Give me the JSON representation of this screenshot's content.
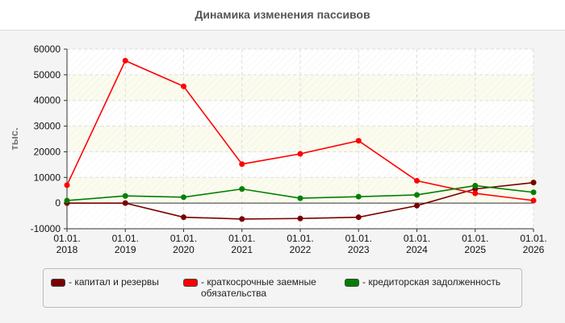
{
  "chart_data": {
    "type": "line",
    "title": "Динамика изменения пассивов",
    "ylabel": "тыс.",
    "xlabel": "",
    "categories": [
      "01.01.\n2018",
      "01.01.\n2019",
      "01.01.\n2020",
      "01.01.\n2021",
      "01.01.\n2022",
      "01.01.\n2023",
      "01.01.\n2024",
      "01.01.\n2025",
      "01.01.\n2026"
    ],
    "ylim": [
      -10000,
      60000
    ],
    "yticks": [
      60000,
      50000,
      40000,
      30000,
      20000,
      10000,
      0,
      -10000
    ],
    "grid": true,
    "legend_position": "bottom",
    "series": [
      {
        "name": "капитал и резервы",
        "color": "#7a0000",
        "values": [
          0,
          0,
          -5500,
          -6200,
          -6000,
          -5500,
          -1000,
          5500,
          8000
        ]
      },
      {
        "name": "краткосрочные заемные обязательства",
        "color": "#ff0000",
        "values": [
          7000,
          55500,
          45500,
          15200,
          19200,
          24300,
          8700,
          3800,
          1000
        ]
      },
      {
        "name": "кредиторская задолженность",
        "color": "#008000",
        "values": [
          1000,
          2800,
          2300,
          5500,
          1900,
          2500,
          3200,
          6800,
          4200
        ]
      }
    ]
  }
}
